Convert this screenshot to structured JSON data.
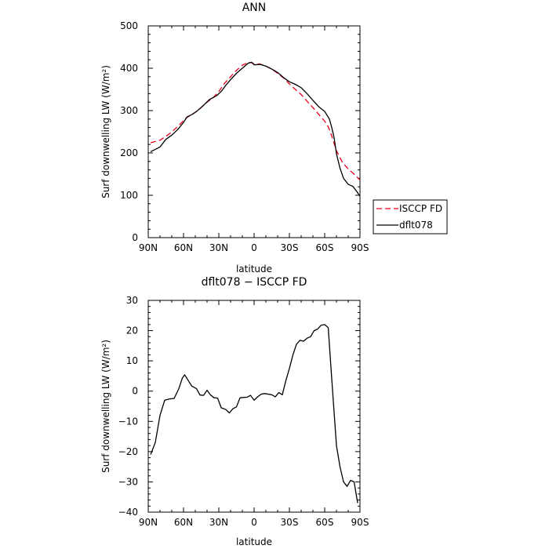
{
  "chart_data": [
    {
      "type": "line",
      "title": "ANN",
      "xlabel": "latitude",
      "ylabel": "Surf downwelling LW (W/m²)",
      "xlim": [
        90,
        -90
      ],
      "ylim": [
        0,
        500
      ],
      "xticks": [
        {
          "value": 90,
          "label": "90N"
        },
        {
          "value": 60,
          "label": "60N"
        },
        {
          "value": 30,
          "label": "30N"
        },
        {
          "value": 0,
          "label": "0"
        },
        {
          "value": -30,
          "label": "30S"
        },
        {
          "value": -60,
          "label": "60S"
        },
        {
          "value": -90,
          "label": "90S"
        }
      ],
      "yticks": [
        0,
        100,
        200,
        300,
        400,
        500
      ],
      "legend_position": "right of plot, bottom",
      "series": [
        {
          "name": "ISCCP FD",
          "color": "#e8001c",
          "dash": "dashed",
          "points": [
            [
              88,
              224
            ],
            [
              80,
              230
            ],
            [
              72,
              245
            ],
            [
              65,
              262
            ],
            [
              58,
              282
            ],
            [
              50,
              296
            ],
            [
              45,
              307
            ],
            [
              40,
              320
            ],
            [
              35,
              330
            ],
            [
              30,
              345
            ],
            [
              25,
              365
            ],
            [
              20,
              380
            ],
            [
              15,
              395
            ],
            [
              10,
              407
            ],
            [
              5,
              414
            ],
            [
              2,
              413
            ],
            [
              0,
              410
            ],
            [
              -5,
              410
            ],
            [
              -10,
              405
            ],
            [
              -15,
              398
            ],
            [
              -20,
              388
            ],
            [
              -25,
              377
            ],
            [
              -30,
              363
            ],
            [
              -35,
              350
            ],
            [
              -40,
              338
            ],
            [
              -45,
              322
            ],
            [
              -50,
              307
            ],
            [
              -55,
              291
            ],
            [
              -60,
              275
            ],
            [
              -63,
              262
            ],
            [
              -66,
              240
            ],
            [
              -70,
              205
            ],
            [
              -75,
              178
            ],
            [
              -80,
              162
            ],
            [
              -85,
              150
            ],
            [
              -90,
              136
            ]
          ]
        },
        {
          "name": "dflt078",
          "color": "#000000",
          "dash": "solid",
          "points": [
            [
              88,
              203
            ],
            [
              80,
              214
            ],
            [
              75,
              232
            ],
            [
              70,
              242
            ],
            [
              65,
              255
            ],
            [
              60,
              272
            ],
            [
              57,
              285
            ],
            [
              52,
              292
            ],
            [
              48,
              300
            ],
            [
              42,
              315
            ],
            [
              38,
              326
            ],
            [
              32,
              335
            ],
            [
              28,
              345
            ],
            [
              24,
              360
            ],
            [
              20,
              373
            ],
            [
              15,
              388
            ],
            [
              10,
              400
            ],
            [
              5,
              412
            ],
            [
              2,
              414
            ],
            [
              0,
              408
            ],
            [
              -5,
              409
            ],
            [
              -10,
              405
            ],
            [
              -15,
              398
            ],
            [
              -20,
              390
            ],
            [
              -25,
              378
            ],
            [
              -30,
              368
            ],
            [
              -35,
              362
            ],
            [
              -40,
              354
            ],
            [
              -45,
              340
            ],
            [
              -50,
              324
            ],
            [
              -55,
              309
            ],
            [
              -60,
              298
            ],
            [
              -64,
              280
            ],
            [
              -66,
              260
            ],
            [
              -68,
              236
            ],
            [
              -70,
              198
            ],
            [
              -73,
              164
            ],
            [
              -76,
              140
            ],
            [
              -80,
              126
            ],
            [
              -84,
              121
            ],
            [
              -87,
              110
            ],
            [
              -90,
              98
            ]
          ]
        }
      ]
    },
    {
      "type": "line",
      "title": "dflt078 − ISCCP FD",
      "xlabel": "latitude",
      "ylabel": "Surf downwelling LW (W/m²)",
      "xlim": [
        90,
        -90
      ],
      "ylim": [
        -40,
        30
      ],
      "xticks": [
        {
          "value": 90,
          "label": "90N"
        },
        {
          "value": 60,
          "label": "60N"
        },
        {
          "value": 30,
          "label": "30N"
        },
        {
          "value": 0,
          "label": "0"
        },
        {
          "value": -30,
          "label": "30S"
        },
        {
          "value": -60,
          "label": "60S"
        },
        {
          "value": -90,
          "label": "90S"
        }
      ],
      "yticks": [
        -40,
        -30,
        -20,
        -10,
        0,
        10,
        20,
        30
      ],
      "series": [
        {
          "color": "#000000",
          "dash": "solid",
          "points": [
            [
              88,
              -21
            ],
            [
              84,
              -17
            ],
            [
              80,
              -8
            ],
            [
              76,
              -3
            ],
            [
              72,
              -2.6
            ],
            [
              68,
              -2.4
            ],
            [
              64,
              0.8
            ],
            [
              61,
              4.3
            ],
            [
              59,
              5.4
            ],
            [
              56,
              3.5
            ],
            [
              53,
              1.7
            ],
            [
              49,
              0.8
            ],
            [
              46,
              -1.3
            ],
            [
              43,
              -1.4
            ],
            [
              40,
              0.3
            ],
            [
              37,
              -1.3
            ],
            [
              34,
              -2.2
            ],
            [
              31,
              -2.3
            ],
            [
              28,
              -5.5
            ],
            [
              24,
              -6.1
            ],
            [
              21,
              -7.2
            ],
            [
              18,
              -5.8
            ],
            [
              15,
              -5.2
            ],
            [
              12,
              -2.2
            ],
            [
              9,
              -2.1
            ],
            [
              6,
              -2.0
            ],
            [
              3,
              -1.4
            ],
            [
              0,
              -3.0
            ],
            [
              -3,
              -1.9
            ],
            [
              -6,
              -1.0
            ],
            [
              -9,
              -0.8
            ],
            [
              -12,
              -1.0
            ],
            [
              -15,
              -1.2
            ],
            [
              -18,
              -1.9
            ],
            [
              -21,
              -0.5
            ],
            [
              -24,
              -1.2
            ],
            [
              -27,
              3.5
            ],
            [
              -30,
              7.5
            ],
            [
              -33,
              12.0
            ],
            [
              -36,
              15.5
            ],
            [
              -39,
              16.8
            ],
            [
              -42,
              16.5
            ],
            [
              -45,
              17.5
            ],
            [
              -48,
              18.0
            ],
            [
              -51,
              20.0
            ],
            [
              -54,
              20.5
            ],
            [
              -57,
              21.8
            ],
            [
              -60,
              22.0
            ],
            [
              -63,
              21.0
            ],
            [
              -66,
              4.0
            ],
            [
              -70,
              -18.0
            ],
            [
              -73,
              -25.0
            ],
            [
              -76,
              -30.0
            ],
            [
              -79,
              -31.5
            ],
            [
              -82,
              -29.5
            ],
            [
              -85,
              -30.0
            ],
            [
              -88,
              -37.0
            ]
          ]
        }
      ]
    }
  ]
}
